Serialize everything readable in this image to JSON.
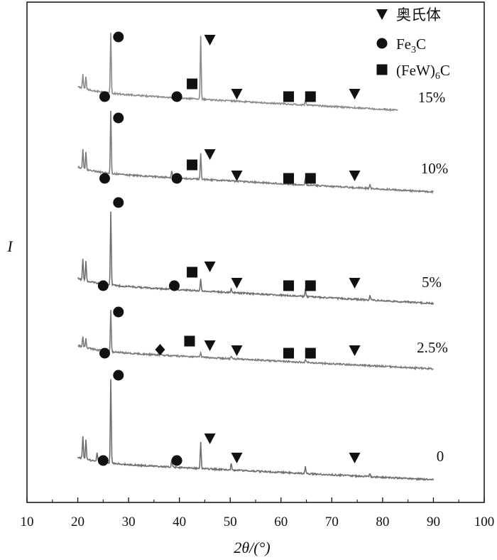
{
  "chart_data": {
    "type": "line",
    "xlabel": "2θ/(°)",
    "ylabel": "I",
    "xlim": [
      10,
      100
    ],
    "xticks": [
      "10",
      "20",
      "30",
      "40",
      "50",
      "60",
      "70",
      "80",
      "90",
      "100"
    ],
    "legend": [
      {
        "marker": "triangle-down",
        "label": "奥氏体"
      },
      {
        "marker": "circle",
        "label": "Fe3C",
        "base": "Fe",
        "sub": "3",
        "tail": "C"
      },
      {
        "marker": "square",
        "label": "(FeW)6C",
        "base": "(FeW)",
        "sub": "6",
        "tail": "C"
      }
    ],
    "legend_position": "top-right",
    "series": [
      {
        "name": "15%",
        "color": "#8a8a8a",
        "x_range": [
          20,
          83
        ],
        "peaks": [
          [
            21,
            0.22
          ],
          [
            21.6,
            0.2
          ],
          [
            26.5,
            0.96
          ],
          [
            44.2,
            1.0
          ],
          [
            64.8,
            0.07
          ]
        ],
        "markers": [
          {
            "type": "circle",
            "x": 25.3
          },
          {
            "type": "circle",
            "x": 28.0
          },
          {
            "type": "circle",
            "x": 39.5
          },
          {
            "type": "square",
            "x": 42.5
          },
          {
            "type": "triangle-down",
            "x": 46.0
          },
          {
            "type": "triangle-down",
            "x": 51.3
          },
          {
            "type": "square",
            "x": 61.5
          },
          {
            "type": "square",
            "x": 65.8
          },
          {
            "type": "triangle-down",
            "x": 74.5
          }
        ]
      },
      {
        "name": "10%",
        "color": "#7a7a7a",
        "x_range": [
          20,
          90
        ],
        "peaks": [
          [
            21,
            0.3
          ],
          [
            21.6,
            0.28
          ],
          [
            26.5,
            1.0
          ],
          [
            38.5,
            0.12
          ],
          [
            44.2,
            0.42
          ],
          [
            64.8,
            0.1
          ],
          [
            77.5,
            0.06
          ]
        ],
        "markers": [
          {
            "type": "circle",
            "x": 25.3
          },
          {
            "type": "circle",
            "x": 28.0
          },
          {
            "type": "circle",
            "x": 39.5
          },
          {
            "type": "square",
            "x": 42.5
          },
          {
            "type": "triangle-down",
            "x": 46.0
          },
          {
            "type": "triangle-down",
            "x": 51.3
          },
          {
            "type": "square",
            "x": 61.5
          },
          {
            "type": "square",
            "x": 65.8
          },
          {
            "type": "triangle-down",
            "x": 74.5
          }
        ]
      },
      {
        "name": "5%",
        "color": "#6e6e6e",
        "x_range": [
          20,
          90
        ],
        "peaks": [
          [
            21,
            0.3
          ],
          [
            21.6,
            0.28
          ],
          [
            26.5,
            1.0
          ],
          [
            38.5,
            0.12
          ],
          [
            44.2,
            0.16
          ],
          [
            50.2,
            0.06
          ],
          [
            64.8,
            0.1
          ],
          [
            77.5,
            0.07
          ]
        ],
        "markers": [
          {
            "type": "circle",
            "x": 25.0
          },
          {
            "type": "circle",
            "x": 28.0
          },
          {
            "type": "circle",
            "x": 39.0
          },
          {
            "type": "square",
            "x": 42.5
          },
          {
            "type": "triangle-down",
            "x": 46.0
          },
          {
            "type": "triangle-down",
            "x": 51.3
          },
          {
            "type": "square",
            "x": 61.5
          },
          {
            "type": "square",
            "x": 65.8
          },
          {
            "type": "triangle-down",
            "x": 74.5
          }
        ]
      },
      {
        "name": "2.5%",
        "color": "#7a7a7a",
        "x_range": [
          20,
          90
        ],
        "peaks": [
          [
            21,
            0.25
          ],
          [
            21.6,
            0.22
          ],
          [
            26.5,
            1.0
          ],
          [
            36.2,
            0.06
          ],
          [
            44.2,
            0.12
          ],
          [
            50.2,
            0.06
          ],
          [
            64.8,
            0.08
          ]
        ],
        "markers": [
          {
            "type": "circle",
            "x": 25.3
          },
          {
            "type": "circle",
            "x": 28.0
          },
          {
            "type": "diamond",
            "x": 36.2
          },
          {
            "type": "square",
            "x": 42.0
          },
          {
            "type": "triangle-down",
            "x": 46.0
          },
          {
            "type": "triangle-down",
            "x": 51.3
          },
          {
            "type": "square",
            "x": 61.5
          },
          {
            "type": "square",
            "x": 65.8
          },
          {
            "type": "triangle-down",
            "x": 74.5
          }
        ]
      },
      {
        "name": "0",
        "color": "#6e6e6e",
        "x_range": [
          20,
          90
        ],
        "peaks": [
          [
            21,
            0.26
          ],
          [
            21.6,
            0.24
          ],
          [
            23.8,
            0.1
          ],
          [
            26.5,
            1.0
          ],
          [
            38.5,
            0.08
          ],
          [
            44.2,
            0.32
          ],
          [
            50.2,
            0.08
          ],
          [
            64.8,
            0.08
          ],
          [
            77.5,
            0.04
          ]
        ],
        "markers": [
          {
            "type": "circle",
            "x": 25.0
          },
          {
            "type": "circle",
            "x": 28.0
          },
          {
            "type": "circle",
            "x": 39.5
          },
          {
            "type": "triangle-down",
            "x": 46.0
          },
          {
            "type": "triangle-down",
            "x": 51.3
          },
          {
            "type": "triangle-down",
            "x": 74.5
          }
        ]
      }
    ]
  }
}
